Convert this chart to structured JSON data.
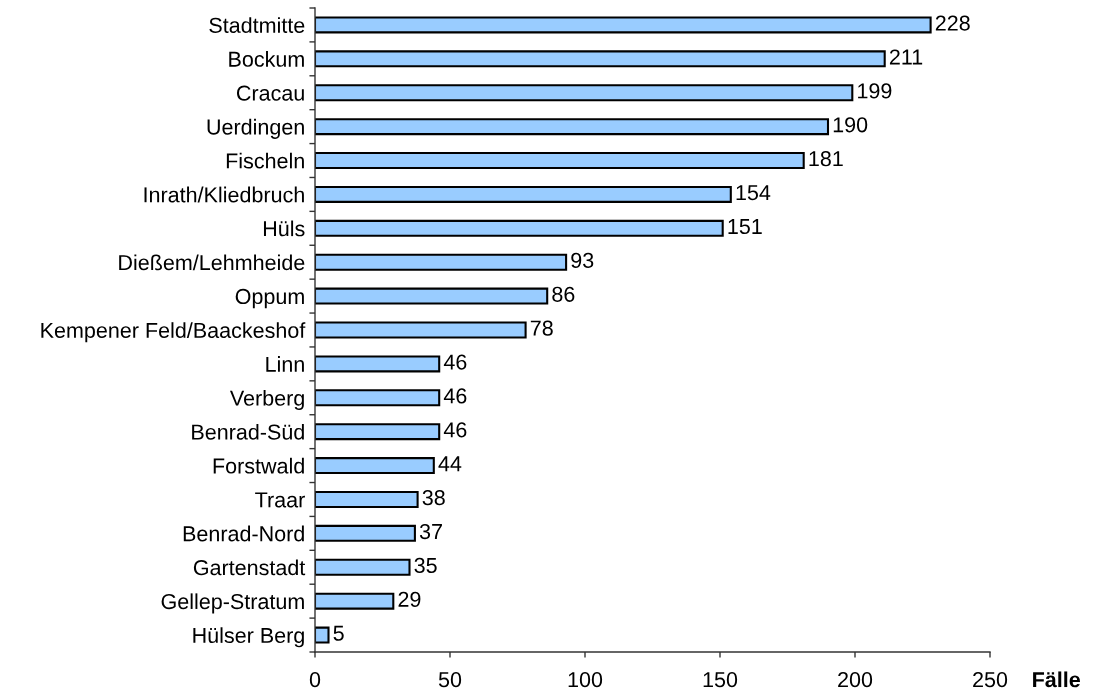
{
  "chart_data": {
    "type": "bar",
    "orientation": "horizontal",
    "xlabel": "Fälle",
    "categories": [
      "Stadtmitte",
      "Bockum",
      "Cracau",
      "Uerdingen",
      "Fischeln",
      "Inrath/Kliedbruch",
      "Hüls",
      "Dießem/Lehmheide",
      "Oppum",
      "Kempener Feld/Baackeshof",
      "Linn",
      "Verberg",
      "Benrad-Süd",
      "Forstwald",
      "Traar",
      "Benrad-Nord",
      "Gartenstadt",
      "Gellep-Stratum",
      "Hülser Berg"
    ],
    "values": [
      228,
      211,
      199,
      190,
      181,
      154,
      151,
      93,
      86,
      78,
      46,
      46,
      46,
      44,
      38,
      37,
      35,
      29,
      5
    ],
    "color": "#99ccff",
    "xlim": [
      0,
      250
    ],
    "xticks": [
      0,
      50,
      100,
      150,
      200,
      250
    ],
    "data_labels": true,
    "grid": false,
    "legend": false
  }
}
